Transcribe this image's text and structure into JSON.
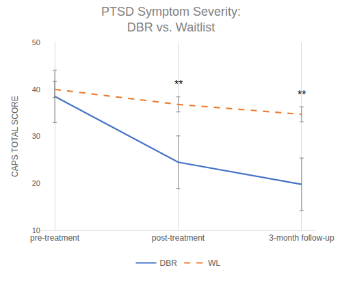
{
  "chart_data": {
    "type": "line",
    "title": "PTSD Symptom Severity:\nDBR vs. Waitlist",
    "y_label": "CAPS TOTAL SCORE",
    "categories": [
      "pre-treatment",
      "post-treatment",
      "3-month follow-up"
    ],
    "series": [
      {
        "name": "DBR",
        "color": "#4472C4",
        "line_style": "solid",
        "values": [
          38.5,
          24.5,
          19.8
        ],
        "error": [
          5.6,
          5.6,
          5.6
        ]
      },
      {
        "name": "WL",
        "color": "#ED7D31",
        "line_style": "dash",
        "values": [
          40.0,
          36.8,
          34.7
        ],
        "error": [
          1.7,
          1.6,
          1.6
        ]
      }
    ],
    "ylim": [
      10,
      50
    ],
    "yticks": [
      10,
      20,
      30,
      40,
      50
    ],
    "grid": true,
    "legend": "bottom",
    "annotations": [
      {
        "text": "**",
        "category": "post-treatment",
        "y": 39.5
      },
      {
        "text": "**",
        "category": "3-month follow-up",
        "y": 37.4
      }
    ]
  }
}
